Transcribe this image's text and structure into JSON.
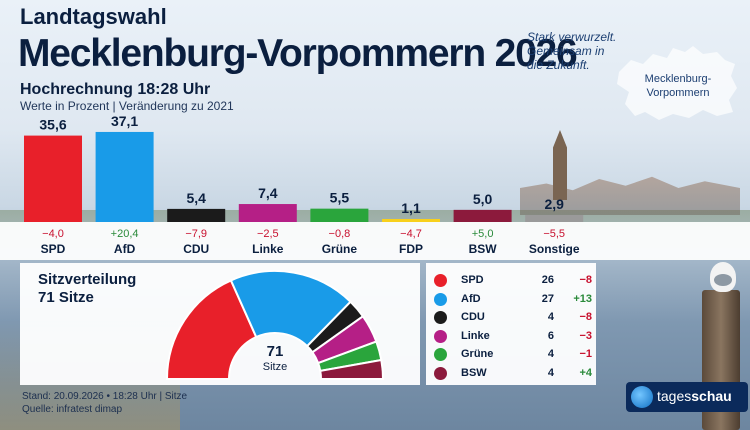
{
  "header": {
    "title_line1": "Landtagswahl",
    "title_line2": "Mecklenburg-Vorpommern 2026",
    "subtitle": "Hochrechnung 18:28 Uhr",
    "caption": "Werte in Prozent | Veränderung zu 2021"
  },
  "slogan": [
    "Stark verwurzelt.",
    "Gemeinsam in",
    "die Zukunft."
  ],
  "map": {
    "label_line1": "Mecklenburg-",
    "label_line2": "Vorpommern"
  },
  "chart_data": [
    {
      "type": "bar",
      "categories": [
        "SPD",
        "AfD",
        "CDU",
        "Linke",
        "Grüne",
        "FDP",
        "BSW",
        "Sonstige"
      ],
      "values": [
        35.6,
        37.1,
        5.4,
        7.4,
        5.5,
        1.1,
        5.0,
        2.9
      ],
      "value_labels": [
        "35,6",
        "37,1",
        "5,4",
        "7,4",
        "5,5",
        "1,1",
        "5,0",
        "2,9"
      ],
      "changes": [
        "−4,0",
        "+20,4",
        "−7,9",
        "−2,5",
        "−0,8",
        "−4,7",
        "+5,0",
        "−5,5"
      ],
      "colors": [
        "#e8202a",
        "#199be8",
        "#1b1b1b",
        "#b51f86",
        "#2aa53c",
        "#f8d01b",
        "#8c1a3c",
        "#9a9a9a"
      ],
      "change_colors": [
        "#c8102e",
        "#2a8a3a",
        "#c8102e",
        "#c8102e",
        "#c8102e",
        "#c8102e",
        "#2a8a3a",
        "#c8102e"
      ],
      "ylim": [
        0,
        40
      ]
    },
    {
      "type": "pie",
      "title": "Sitzverteilung",
      "subtitle": "71 Sitze",
      "total": "71",
      "unit": "Sitze",
      "categories": [
        "SPD",
        "AfD",
        "CDU",
        "Linke",
        "Grüne",
        "BSW"
      ],
      "values": [
        26,
        27,
        4,
        6,
        4,
        4
      ],
      "changes": [
        "−8",
        "+13",
        "−8",
        "−3",
        "−1",
        "+4"
      ],
      "colors": [
        "#e8202a",
        "#199be8",
        "#1b1b1b",
        "#b51f86",
        "#2aa53c",
        "#8c1a3c"
      ],
      "change_colors": [
        "#c8102e",
        "#2a8a3a",
        "#c8102e",
        "#c8102e",
        "#c8102e",
        "#2a8a3a"
      ]
    }
  ],
  "footer": {
    "stand": "Stand:  20.09.2026 • 18:28 Uhr  |  Sitze",
    "source": "Quelle:  infratest dimap"
  },
  "logo": {
    "part1": "tages",
    "part2": "schau"
  }
}
